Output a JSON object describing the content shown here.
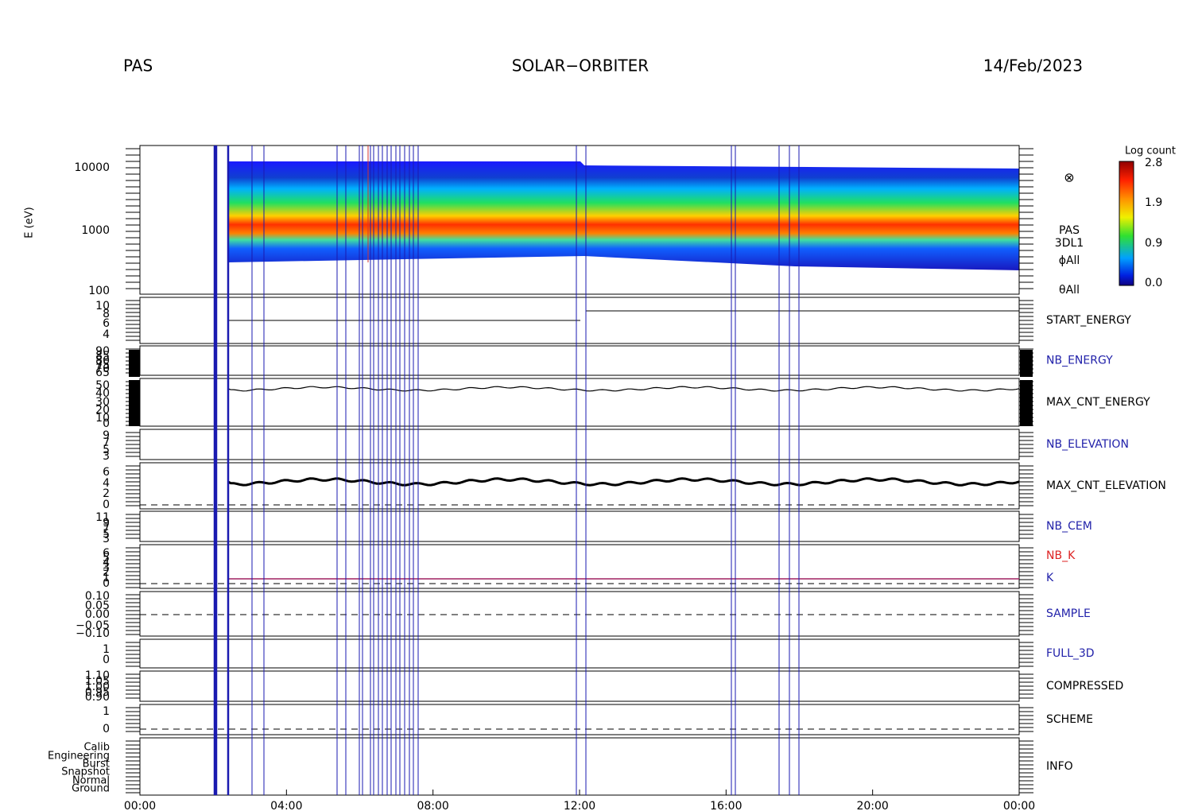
{
  "header": {
    "left": "PAS",
    "center": "SOLAR−ORBITER",
    "right": "14/Feb/2023"
  },
  "y_axis_label": "E (eV)",
  "spectrogram_labels": [
    "PAS",
    "3DL1",
    "ϕAll",
    "θAll"
  ],
  "colorbar": {
    "title": "Log count",
    "labels": [
      "2.8",
      "1.9",
      "0.9",
      "0.0"
    ]
  },
  "x_ticks": [
    "00:00",
    "04:00",
    "08:00",
    "12:00",
    "16:00",
    "20:00",
    "00:00"
  ],
  "panels": [
    {
      "names": [],
      "ticks": [
        "10000",
        "1000",
        "100"
      ]
    },
    {
      "names": [
        {
          "text": "START_ENERGY",
          "color": "#000000"
        }
      ],
      "ticks": [
        "10",
        "8",
        "6",
        "4"
      ]
    },
    {
      "names": [
        {
          "text": "NB_ENERGY",
          "color": "#2222aa"
        }
      ],
      "ticks": [
        "90",
        "85",
        "80",
        "75",
        "70",
        "65"
      ]
    },
    {
      "names": [
        {
          "text": "MAX_CNT_ENERGY",
          "color": "#000000"
        }
      ],
      "ticks": [
        "50",
        "40",
        "30",
        "20",
        "10",
        "0"
      ]
    },
    {
      "names": [
        {
          "text": "NB_ELEVATION",
          "color": "#2222aa"
        }
      ],
      "ticks": [
        "9",
        "7",
        "5",
        "3"
      ]
    },
    {
      "names": [
        {
          "text": "MAX_CNT_ELEVATION",
          "color": "#000000"
        }
      ],
      "ticks": [
        "6",
        "4",
        "2",
        "0"
      ]
    },
    {
      "names": [
        {
          "text": "NB_CEM",
          "color": "#2222aa"
        }
      ],
      "ticks": [
        "11",
        "9",
        "7",
        "5",
        "3"
      ]
    },
    {
      "names": [
        {
          "text": "NB_K",
          "color": "#dd2222"
        },
        {
          "text": "K",
          "color": "#2222aa"
        }
      ],
      "ticks": [
        "6",
        "5",
        "4",
        "3",
        "2",
        "1",
        "0"
      ]
    },
    {
      "names": [
        {
          "text": "SAMPLE",
          "color": "#2222aa"
        }
      ],
      "ticks": [
        "0.10",
        "0.05",
        "0.00",
        "−0.05",
        "−0.10"
      ]
    },
    {
      "names": [
        {
          "text": "FULL_3D",
          "color": "#2222aa"
        }
      ],
      "ticks": [
        "1",
        "0"
      ]
    },
    {
      "names": [
        {
          "text": "COMPRESSED",
          "color": "#000000"
        }
      ],
      "ticks": [
        "1.10",
        "1.05",
        "1.00",
        "0.95",
        "0.90"
      ]
    },
    {
      "names": [
        {
          "text": "SCHEME",
          "color": "#000000"
        }
      ],
      "ticks": [
        "1",
        "0"
      ]
    },
    {
      "names": [
        {
          "text": "INFO",
          "color": "#000000"
        }
      ],
      "ticks": [
        "Calib",
        "Engineering",
        "Burst",
        "Snapshot",
        "Normal",
        "Ground"
      ]
    }
  ]
}
